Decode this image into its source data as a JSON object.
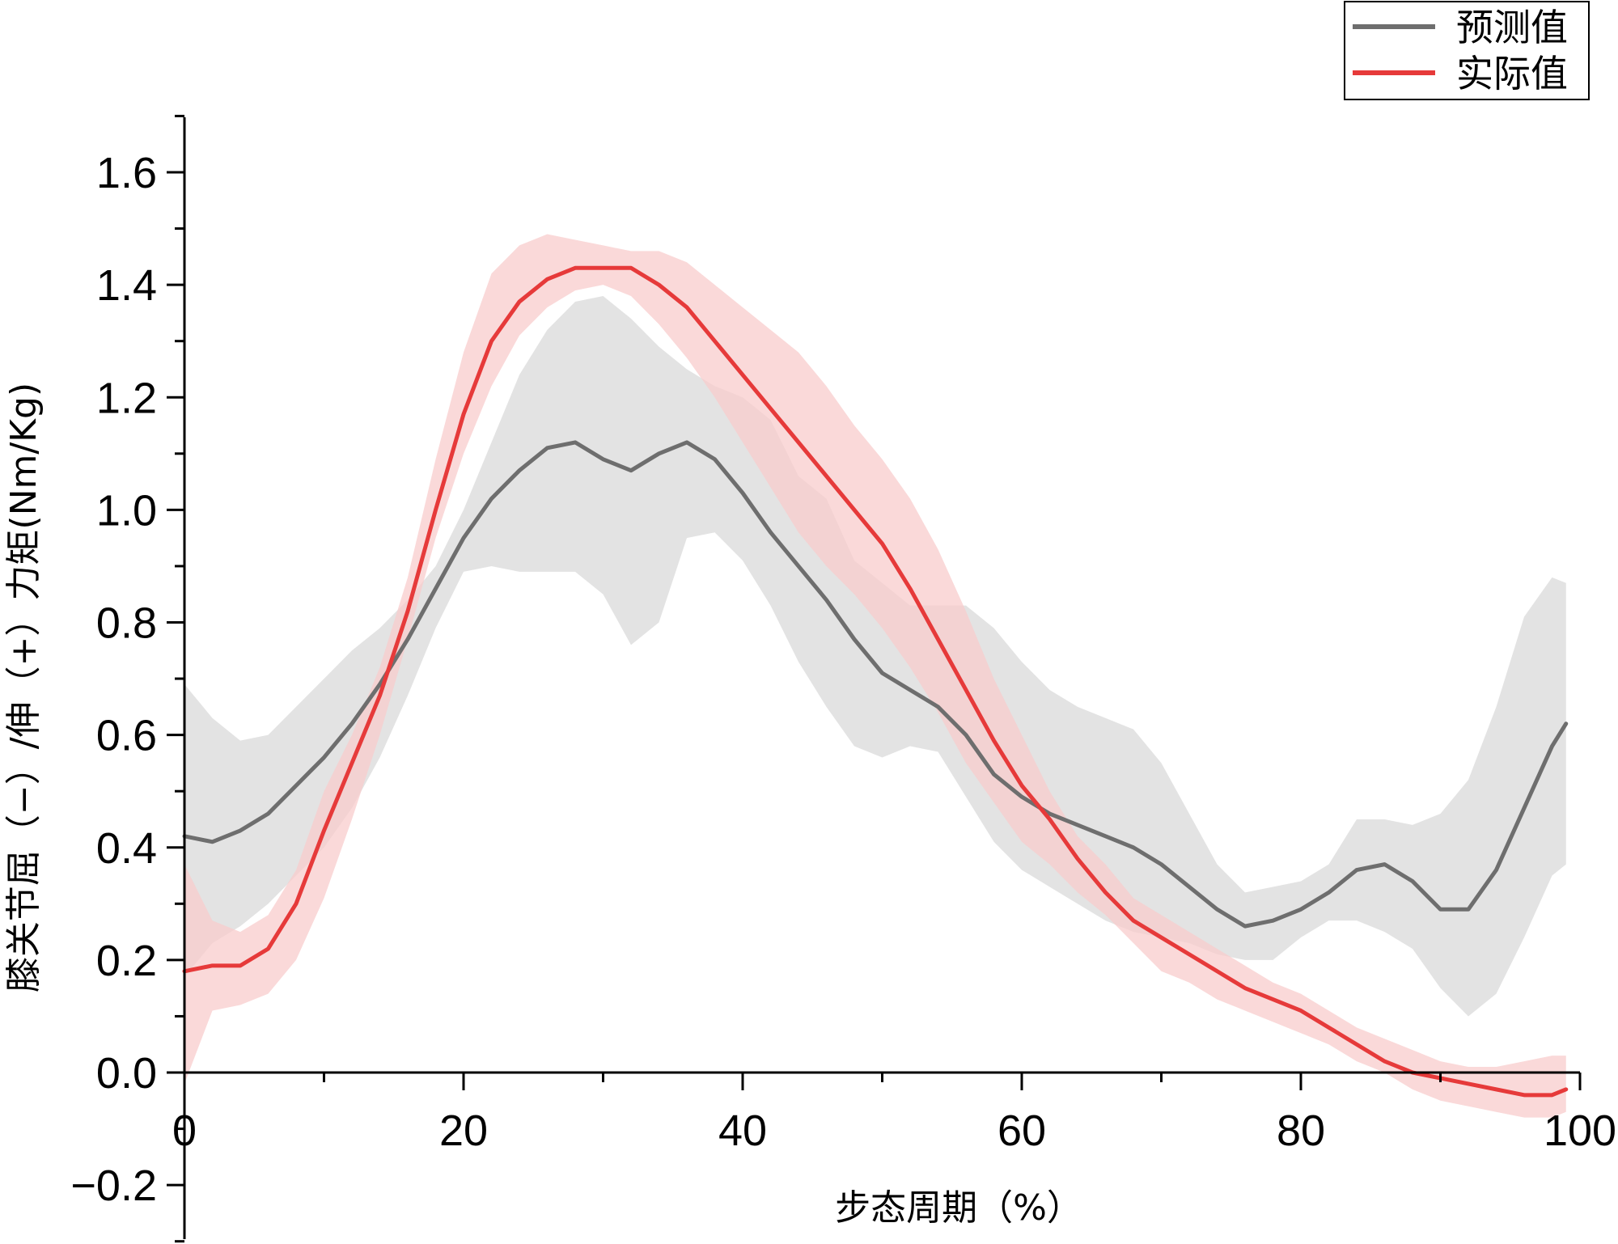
{
  "chart_data": {
    "type": "line",
    "xlabel": "步态周期（%）",
    "ylabel": "膝关节屈（−）/伸（+）力矩(Nm/Kg)",
    "xlim": [
      0,
      100
    ],
    "ylim": [
      -0.3,
      1.7
    ],
    "x_ticks": [
      0,
      20,
      40,
      60,
      80,
      100
    ],
    "x_tick_labels": [
      "0",
      "20",
      "40",
      "60",
      "80",
      "100"
    ],
    "y_ticks": [
      -0.2,
      0.0,
      0.2,
      0.4,
      0.6,
      0.8,
      1.0,
      1.2,
      1.4,
      1.6
    ],
    "y_tick_labels": [
      "−0.2",
      "0.0",
      "0.2",
      "0.4",
      "0.6",
      "0.8",
      "1.0",
      "1.2",
      "1.4",
      "1.6"
    ],
    "legend_position": "top-right",
    "grid": false,
    "x": [
      0,
      2,
      4,
      6,
      8,
      10,
      12,
      14,
      16,
      18,
      20,
      22,
      24,
      26,
      28,
      30,
      32,
      34,
      36,
      38,
      40,
      42,
      44,
      46,
      48,
      50,
      52,
      54,
      56,
      58,
      60,
      62,
      64,
      66,
      68,
      70,
      72,
      74,
      76,
      78,
      80,
      82,
      84,
      86,
      88,
      90,
      92,
      94,
      96,
      98,
      99
    ],
    "series": [
      {
        "name": "预测值",
        "color": "#6e6e6e",
        "band_color": "#d9d9d9",
        "values": [
          0.42,
          0.41,
          0.43,
          0.46,
          0.51,
          0.56,
          0.62,
          0.69,
          0.77,
          0.86,
          0.95,
          1.02,
          1.07,
          1.11,
          1.12,
          1.09,
          1.07,
          1.1,
          1.12,
          1.09,
          1.03,
          0.96,
          0.9,
          0.84,
          0.77,
          0.71,
          0.68,
          0.65,
          0.6,
          0.53,
          0.49,
          0.46,
          0.44,
          0.42,
          0.4,
          0.37,
          0.33,
          0.29,
          0.26,
          0.27,
          0.29,
          0.32,
          0.36,
          0.37,
          0.34,
          0.29,
          0.29,
          0.36,
          0.47,
          0.58,
          0.62
        ],
        "upper": [
          0.69,
          0.63,
          0.59,
          0.6,
          0.65,
          0.7,
          0.75,
          0.79,
          0.84,
          0.9,
          1.0,
          1.12,
          1.24,
          1.32,
          1.37,
          1.38,
          1.34,
          1.29,
          1.25,
          1.22,
          1.2,
          1.16,
          1.06,
          1.02,
          0.91,
          0.87,
          0.83,
          0.83,
          0.83,
          0.79,
          0.73,
          0.68,
          0.65,
          0.63,
          0.61,
          0.55,
          0.46,
          0.37,
          0.32,
          0.33,
          0.34,
          0.37,
          0.45,
          0.45,
          0.44,
          0.46,
          0.52,
          0.65,
          0.81,
          0.88,
          0.87
        ],
        "lower": [
          0.17,
          0.23,
          0.26,
          0.3,
          0.35,
          0.4,
          0.47,
          0.56,
          0.67,
          0.79,
          0.89,
          0.9,
          0.89,
          0.89,
          0.89,
          0.85,
          0.76,
          0.8,
          0.95,
          0.96,
          0.91,
          0.83,
          0.73,
          0.65,
          0.58,
          0.56,
          0.58,
          0.57,
          0.49,
          0.41,
          0.36,
          0.33,
          0.3,
          0.27,
          0.25,
          0.24,
          0.23,
          0.21,
          0.2,
          0.2,
          0.24,
          0.27,
          0.27,
          0.25,
          0.22,
          0.15,
          0.1,
          0.14,
          0.24,
          0.35,
          0.37
        ]
      },
      {
        "name": "实际值",
        "color": "#e63a3a",
        "band_color": "#f8cccc",
        "values": [
          0.18,
          0.19,
          0.19,
          0.22,
          0.3,
          0.43,
          0.55,
          0.67,
          0.82,
          1.0,
          1.17,
          1.3,
          1.37,
          1.41,
          1.43,
          1.43,
          1.43,
          1.4,
          1.36,
          1.3,
          1.24,
          1.18,
          1.12,
          1.06,
          1.0,
          0.94,
          0.86,
          0.77,
          0.68,
          0.59,
          0.51,
          0.45,
          0.38,
          0.32,
          0.27,
          0.24,
          0.21,
          0.18,
          0.15,
          0.13,
          0.11,
          0.08,
          0.05,
          0.02,
          0.0,
          -0.01,
          -0.02,
          -0.03,
          -0.04,
          -0.04,
          -0.03
        ],
        "upper": [
          0.37,
          0.27,
          0.25,
          0.28,
          0.36,
          0.5,
          0.6,
          0.72,
          0.88,
          1.09,
          1.28,
          1.42,
          1.47,
          1.49,
          1.48,
          1.47,
          1.46,
          1.46,
          1.44,
          1.4,
          1.36,
          1.32,
          1.28,
          1.22,
          1.15,
          1.09,
          1.02,
          0.93,
          0.82,
          0.7,
          0.6,
          0.5,
          0.42,
          0.37,
          0.31,
          0.28,
          0.25,
          0.22,
          0.19,
          0.16,
          0.14,
          0.11,
          0.08,
          0.06,
          0.04,
          0.02,
          0.01,
          0.01,
          0.02,
          0.03,
          0.03
        ],
        "lower": [
          -0.02,
          0.11,
          0.12,
          0.14,
          0.2,
          0.31,
          0.45,
          0.6,
          0.77,
          0.95,
          1.1,
          1.22,
          1.31,
          1.36,
          1.39,
          1.4,
          1.38,
          1.33,
          1.27,
          1.2,
          1.12,
          1.04,
          0.96,
          0.9,
          0.85,
          0.79,
          0.72,
          0.64,
          0.55,
          0.48,
          0.41,
          0.37,
          0.32,
          0.28,
          0.23,
          0.18,
          0.16,
          0.13,
          0.11,
          0.09,
          0.07,
          0.05,
          0.02,
          0.0,
          -0.03,
          -0.05,
          -0.06,
          -0.07,
          -0.08,
          -0.08,
          -0.07
        ]
      }
    ]
  }
}
